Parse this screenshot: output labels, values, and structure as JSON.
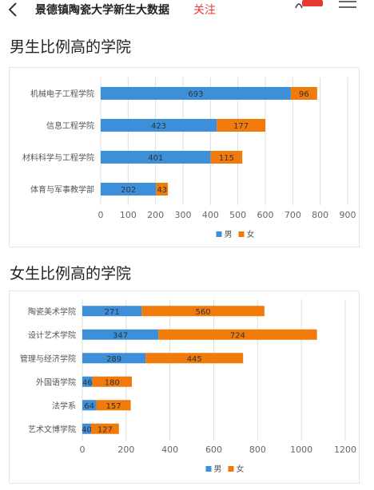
{
  "header": {
    "title": "景德镇陶瓷大学新生大数据",
    "follow_label": "关注"
  },
  "sections": [
    {
      "title": "男生比例高的学院"
    },
    {
      "title": "女生比例高的学院"
    }
  ],
  "colors": {
    "male": "#3d8fd9",
    "female": "#f07a0a",
    "grid": "#dddddd",
    "axis_text": "#666666"
  },
  "chart_data": [
    {
      "type": "bar",
      "orientation": "horizontal",
      "stacked": true,
      "categories": [
        "机械电子工程学院",
        "信息工程学院",
        "材料科学与工程学院",
        "体育与军事教学部"
      ],
      "series": [
        {
          "name": "男",
          "values": [
            693,
            423,
            401,
            202
          ]
        },
        {
          "name": "女",
          "values": [
            96,
            177,
            115,
            43
          ]
        }
      ],
      "ticks": [
        0,
        100,
        200,
        300,
        400,
        500,
        600,
        700,
        800,
        900
      ],
      "xlim": [
        0,
        900
      ],
      "grid": true,
      "legend": "bottom-center"
    },
    {
      "type": "bar",
      "orientation": "horizontal",
      "stacked": true,
      "categories": [
        "陶瓷美术学院",
        "设计艺术学院",
        "管理与经济学院",
        "外国语学院",
        "法学系",
        "艺术文博学院"
      ],
      "series": [
        {
          "name": "男",
          "values": [
            271,
            347,
            289,
            46,
            64,
            40
          ]
        },
        {
          "name": "女",
          "values": [
            560,
            724,
            445,
            180,
            157,
            127
          ]
        }
      ],
      "ticks": [
        0,
        200,
        400,
        600,
        800,
        1000,
        1200
      ],
      "xlim": [
        0,
        1200
      ],
      "grid": true,
      "legend": "bottom-center"
    }
  ]
}
